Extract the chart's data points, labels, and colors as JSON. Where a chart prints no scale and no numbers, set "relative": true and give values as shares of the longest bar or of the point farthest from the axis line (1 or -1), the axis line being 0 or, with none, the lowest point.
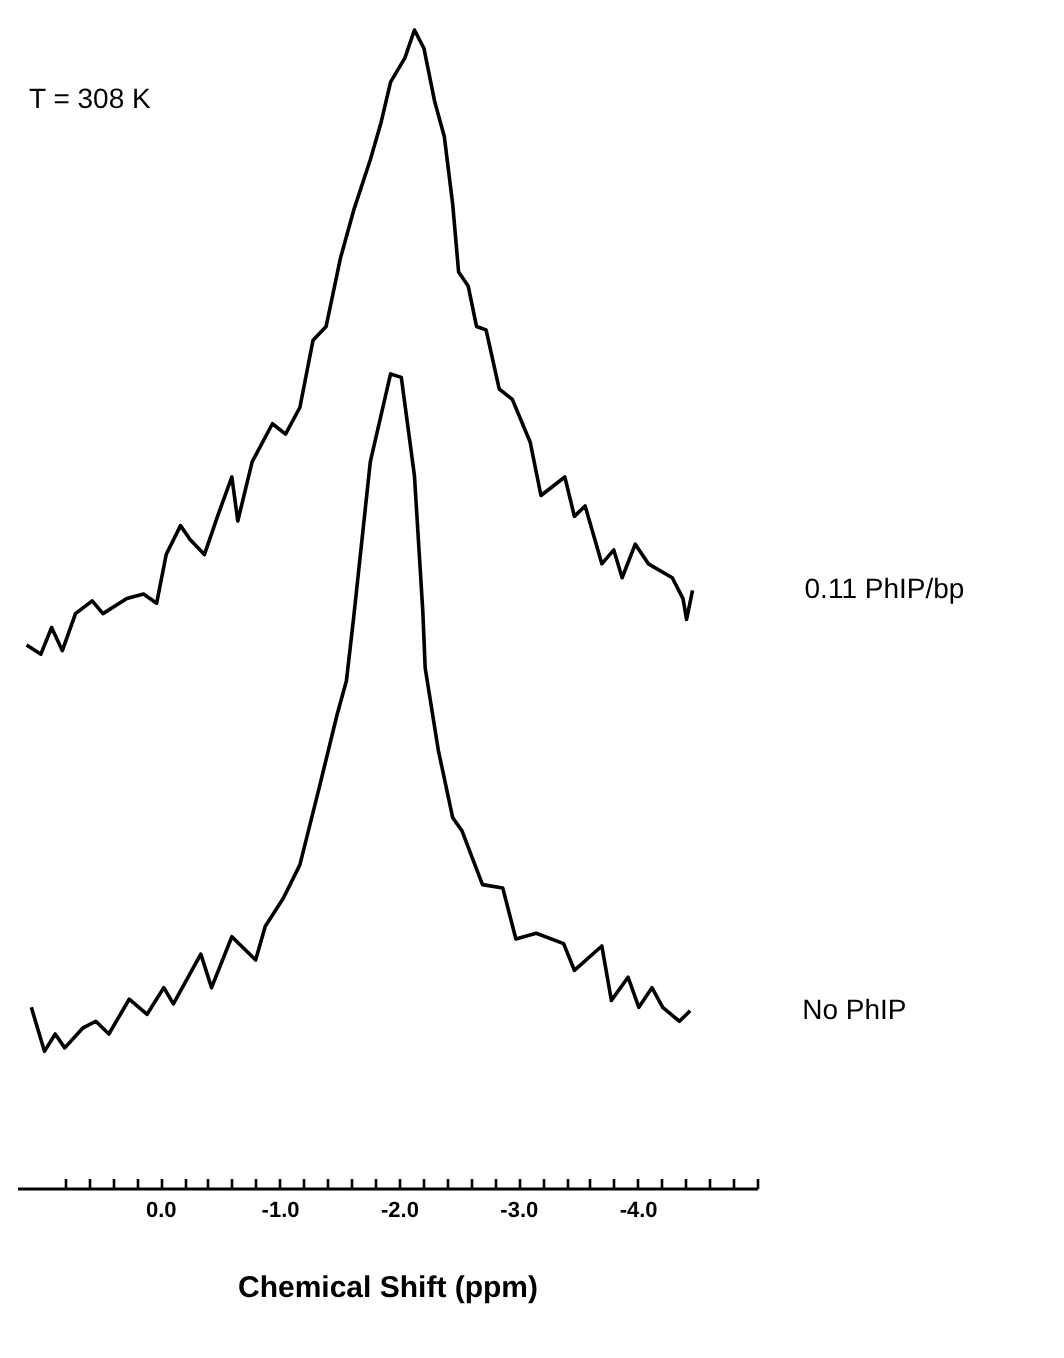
{
  "chart_data": {
    "type": "line",
    "relative": true,
    "xlabel": "Chemical Shift  (ppm)",
    "annotations": [
      "T = 308 K"
    ],
    "xlim": [
      1.2,
      -5.0
    ],
    "xticks": [
      {
        "value": 0.8,
        "label": null
      },
      {
        "value": 0.6,
        "label": null
      },
      {
        "value": 0.4,
        "label": null
      },
      {
        "value": 0.2,
        "label": null
      },
      {
        "value": 0,
        "label": "0.0"
      },
      {
        "value": -0.2,
        "label": null
      },
      {
        "value": -0.4,
        "label": null
      },
      {
        "value": -0.6,
        "label": null
      },
      {
        "value": -0.8,
        "label": null
      },
      {
        "value": -1,
        "label": "-1.0"
      },
      {
        "value": -1.2,
        "label": null
      },
      {
        "value": -1.4,
        "label": null
      },
      {
        "value": -1.6,
        "label": null
      },
      {
        "value": -1.8,
        "label": null
      },
      {
        "value": -2,
        "label": "-2.0"
      },
      {
        "value": -2.2,
        "label": null
      },
      {
        "value": -2.4,
        "label": null
      },
      {
        "value": -2.6,
        "label": null
      },
      {
        "value": -2.8,
        "label": null
      },
      {
        "value": -3,
        "label": "-3.0"
      },
      {
        "value": -3.2,
        "label": null
      },
      {
        "value": -3.4,
        "label": null
      },
      {
        "value": -3.6,
        "label": null
      },
      {
        "value": -3.8,
        "label": null
      },
      {
        "value": -4,
        "label": "-4.0"
      },
      {
        "value": -4.2,
        "label": null
      },
      {
        "value": -4.4,
        "label": null
      },
      {
        "value": -4.6,
        "label": null
      },
      {
        "value": -4.8,
        "label": null
      },
      {
        "value": -5,
        "label": null
      }
    ],
    "series": [
      {
        "name": "0.11 PhIP/bp",
        "color": "#000000",
        "x": [
          1.12,
          1.0,
          0.91,
          0.82,
          0.71,
          0.57,
          0.48,
          0.28,
          0.14,
          0.03,
          -0.05,
          -0.17,
          -0.25,
          -0.37,
          -0.48,
          -0.6,
          -0.65,
          -0.77,
          -0.94,
          -1.05,
          -1.17,
          -1.28,
          -1.39,
          -1.51,
          -1.62,
          -1.76,
          -1.85,
          -1.93,
          -2.05,
          -2.13,
          -2.21,
          -2.3,
          -2.38,
          -2.45,
          -2.5,
          -2.58,
          -2.65,
          -2.73,
          -2.84,
          -2.95,
          -3.1,
          -3.19,
          -3.39,
          -3.47,
          -3.56,
          -3.7,
          -3.8,
          -3.87,
          -3.98,
          -4.09,
          -4.29,
          -4.38,
          -4.41,
          -4.46
        ],
        "values": [
          0.469,
          0.461,
          0.484,
          0.464,
          0.496,
          0.507,
          0.496,
          0.509,
          0.513,
          0.505,
          0.547,
          0.572,
          0.56,
          0.547,
          0.58,
          0.614,
          0.576,
          0.627,
          0.66,
          0.651,
          0.674,
          0.732,
          0.744,
          0.803,
          0.844,
          0.888,
          0.92,
          0.955,
          0.976,
          1.0,
          0.984,
          0.938,
          0.908,
          0.85,
          0.791,
          0.779,
          0.744,
          0.741,
          0.69,
          0.681,
          0.644,
          0.598,
          0.614,
          0.58,
          0.589,
          0.539,
          0.551,
          0.527,
          0.556,
          0.539,
          0.527,
          0.509,
          0.491,
          0.516
        ]
      },
      {
        "name": "No PhIP",
        "color": "#000000",
        "x": [
          1.08,
          0.97,
          0.88,
          0.8,
          0.65,
          0.54,
          0.43,
          0.26,
          0.11,
          -0.03,
          -0.11,
          -0.34,
          -0.43,
          -0.6,
          -0.8,
          -0.88,
          -1.03,
          -1.17,
          -1.34,
          -1.48,
          -1.56,
          -1.62,
          -1.76,
          -1.93,
          -2.02,
          -2.13,
          -2.2,
          -2.22,
          -2.33,
          -2.45,
          -2.53,
          -2.7,
          -2.87,
          -2.98,
          -3.15,
          -3.38,
          -3.47,
          -3.7,
          -3.78,
          -3.92,
          -4.01,
          -4.12,
          -4.21,
          -4.35,
          -4.44
        ],
        "values": [
          0.156,
          0.118,
          0.133,
          0.121,
          0.138,
          0.144,
          0.133,
          0.163,
          0.15,
          0.173,
          0.159,
          0.202,
          0.173,
          0.217,
          0.197,
          0.226,
          0.25,
          0.279,
          0.349,
          0.408,
          0.438,
          0.492,
          0.627,
          0.703,
          0.7,
          0.615,
          0.498,
          0.449,
          0.378,
          0.32,
          0.308,
          0.262,
          0.259,
          0.215,
          0.22,
          0.211,
          0.188,
          0.209,
          0.162,
          0.182,
          0.156,
          0.173,
          0.156,
          0.144,
          0.153
        ]
      }
    ]
  }
}
